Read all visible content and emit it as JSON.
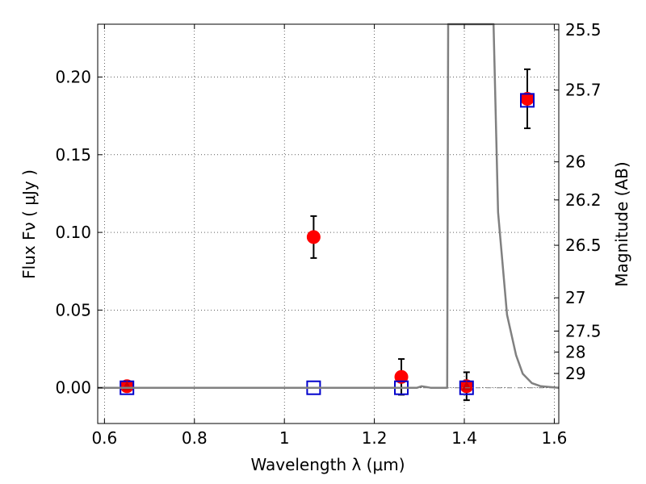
{
  "chart_data": {
    "type": "scatter",
    "xlabel": "Wavelength  λ (μm)",
    "ylabel": "Flux  Fν  ( μJy )",
    "ylabel_right": "Magnitude (AB)",
    "xlim": [
      0.585,
      1.61
    ],
    "ylim": [
      -0.023,
      0.234
    ],
    "grid": true,
    "x_ticks": [
      0.6,
      0.8,
      1.0,
      1.2,
      1.4,
      1.6
    ],
    "x_tick_labels": [
      "0.6",
      "0.8",
      "1",
      "1.2",
      "1.4",
      "1.6"
    ],
    "y_ticks": [
      0.0,
      0.05,
      0.1,
      0.15,
      0.2
    ],
    "y_tick_labels": [
      "0.00",
      "0.05",
      "0.10",
      "0.15",
      "0.20"
    ],
    "mag_ticks": [
      {
        "label": "25.5",
        "flux": 0.2304
      },
      {
        "label": "25.7",
        "flux": 0.1916
      },
      {
        "label": "26",
        "flux": 0.1454
      },
      {
        "label": "26.2",
        "flux": 0.1209
      },
      {
        "label": "26.5",
        "flux": 0.0917
      },
      {
        "label": "27",
        "flux": 0.0579
      },
      {
        "label": "27.5",
        "flux": 0.0365
      },
      {
        "label": "28",
        "flux": 0.023
      },
      {
        "label": "29",
        "flux": 0.0092
      }
    ],
    "series": [
      {
        "marker": "circle",
        "color": "#ff0000",
        "points": [
          {
            "x": 0.65,
            "y": 0.001,
            "err": 0.003
          },
          {
            "x": 1.065,
            "y": 0.097,
            "err": 0.0135
          },
          {
            "x": 1.26,
            "y": 0.007,
            "err": 0.0115
          },
          {
            "x": 1.405,
            "y": 0.001,
            "err": 0.009
          },
          {
            "x": 1.54,
            "y": 0.186,
            "err": 0.019
          }
        ]
      },
      {
        "marker": "open-square",
        "color": "#0000cc",
        "points": [
          {
            "x": 0.65,
            "y": 0.0
          },
          {
            "x": 1.065,
            "y": 0.0
          },
          {
            "x": 1.26,
            "y": 0.0
          },
          {
            "x": 1.405,
            "y": 0.0
          },
          {
            "x": 1.54,
            "y": 0.185
          }
        ]
      },
      {
        "marker": "triangle",
        "color": "#cc0000",
        "points": [
          {
            "x": 0.65,
            "y": 0.001
          },
          {
            "x": 1.405,
            "y": 0.001
          }
        ]
      },
      {
        "marker": "line",
        "color": "#808080",
        "points": [
          {
            "x": 0.585,
            "y": 0.0
          },
          {
            "x": 1.295,
            "y": 0.0
          },
          {
            "x": 1.305,
            "y": 0.001
          },
          {
            "x": 1.315,
            "y": 0.0005
          },
          {
            "x": 1.325,
            "y": 0.0
          },
          {
            "x": 1.362,
            "y": 0.0
          },
          {
            "x": 1.364,
            "y": 0.234
          },
          {
            "x": 1.465,
            "y": 0.234
          },
          {
            "x": 1.475,
            "y": 0.113
          },
          {
            "x": 1.495,
            "y": 0.047
          },
          {
            "x": 1.515,
            "y": 0.021
          },
          {
            "x": 1.53,
            "y": 0.009
          },
          {
            "x": 1.55,
            "y": 0.003
          },
          {
            "x": 1.57,
            "y": 0.001
          },
          {
            "x": 1.61,
            "y": 0.0
          }
        ]
      },
      {
        "marker": "dash-dot",
        "color": "#808080",
        "points": [
          {
            "x": 0.585,
            "y": 0.0
          },
          {
            "x": 1.61,
            "y": 0.0
          }
        ]
      }
    ]
  }
}
